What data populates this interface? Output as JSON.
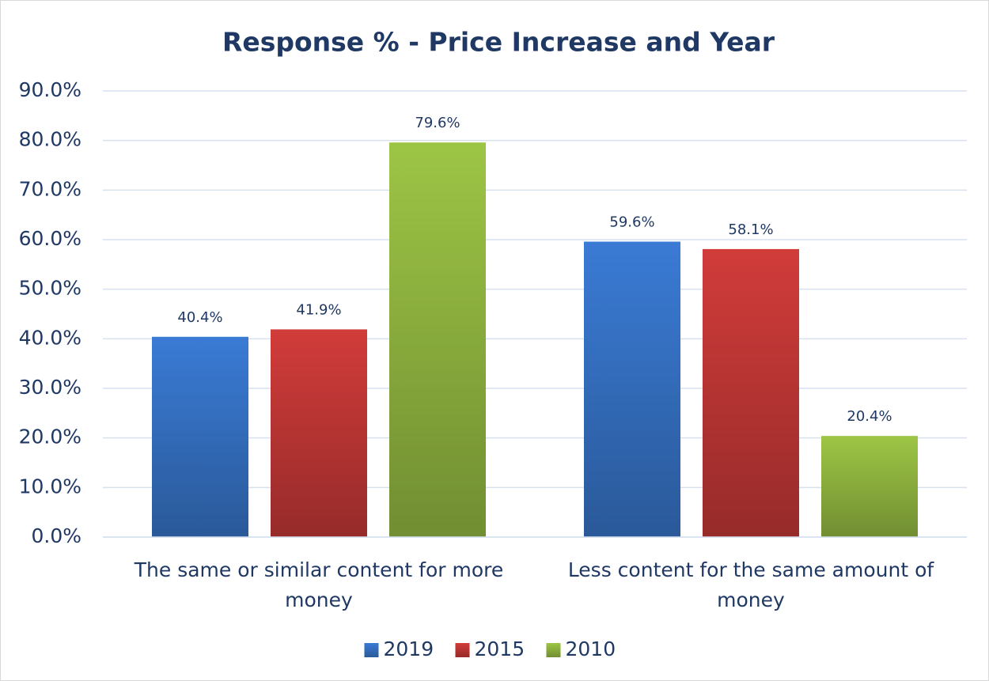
{
  "chart_data": {
    "type": "bar",
    "title": "Response % - Price Increase and Year",
    "categories": [
      "The same or similar content for more money",
      "Less content for the same amount of money"
    ],
    "series": [
      {
        "name": "2019",
        "color": "#3a7bd5",
        "values": [
          40.4,
          59.6
        ],
        "value_labels": [
          "40.4%",
          "59.6%"
        ]
      },
      {
        "name": "2015",
        "color": "#d13c3a",
        "values": [
          41.9,
          58.1
        ],
        "value_labels": [
          "41.9%",
          "58.1%"
        ]
      },
      {
        "name": "2010",
        "color": "#9dc545",
        "values": [
          79.6,
          20.4
        ],
        "value_labels": [
          "79.6%",
          "20.4%"
        ]
      }
    ],
    "ylim": [
      0,
      90
    ],
    "yticks": [
      {
        "value": 0,
        "label": "0.0%"
      },
      {
        "value": 10,
        "label": "10.0%"
      },
      {
        "value": 20,
        "label": "20.0%"
      },
      {
        "value": 30,
        "label": "30.0%"
      },
      {
        "value": 40,
        "label": "40.0%"
      },
      {
        "value": 50,
        "label": "50.0%"
      },
      {
        "value": 60,
        "label": "60.0%"
      },
      {
        "value": 70,
        "label": "70.0%"
      },
      {
        "value": 80,
        "label": "80.0%"
      },
      {
        "value": 90,
        "label": "90.0%"
      }
    ],
    "grid": true,
    "legend": "bottom"
  }
}
